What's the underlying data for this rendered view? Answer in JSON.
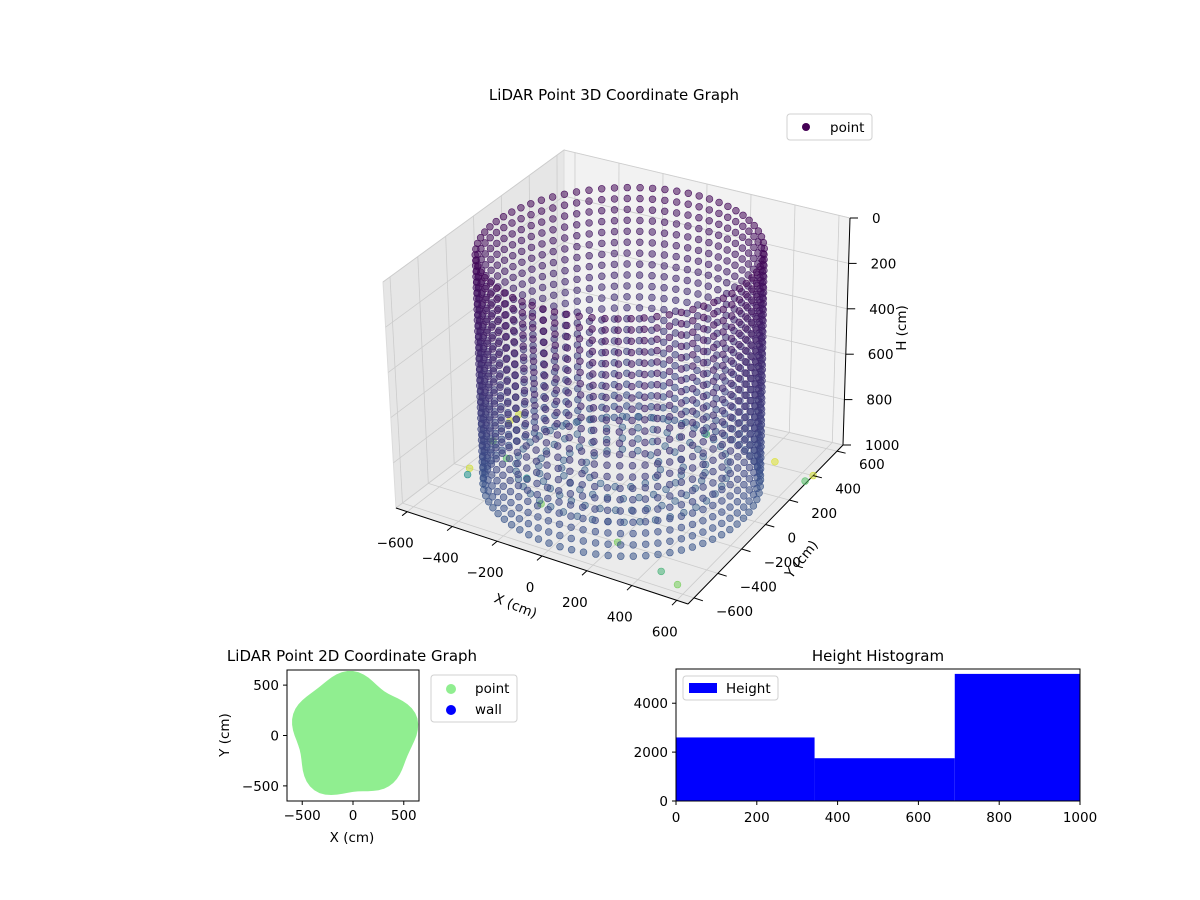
{
  "chart_data": [
    {
      "id": "lidar-3d",
      "type": "scatter",
      "projection": "3d",
      "title": "LiDAR Point 3D Coordinate Graph",
      "xlabel": "X (cm)",
      "ylabel": "Y (cm)",
      "zlabel": "H (cm)",
      "xlim": [
        -650,
        650
      ],
      "ylim": [
        -650,
        650
      ],
      "zlim": [
        0,
        1000
      ],
      "z_inverted": true,
      "xticks": [
        "−600",
        "−400",
        "−200",
        "0",
        "200",
        "400",
        "600"
      ],
      "yticks": [
        "−600",
        "−400",
        "−200",
        "0",
        "200",
        "400",
        "600"
      ],
      "zticks": [
        "0",
        "200",
        "400",
        "600",
        "800",
        "1000"
      ],
      "colormap": "viridis",
      "colormap_colors": [
        "#440154",
        "#3b528b",
        "#21918c",
        "#5ec962",
        "#fde725"
      ],
      "legend": {
        "entries": [
          "point"
        ],
        "placement": "upper-right"
      },
      "grid": true,
      "series": [
        {
          "name": "point",
          "description_shape": "cylindrical wall",
          "wall_radius": 550,
          "height_range": [
            0,
            1000
          ],
          "stray_points": [
            {
              "x": -620,
              "y": 50,
              "h": 1000
            },
            {
              "x": -600,
              "y": 150,
              "h": 950
            },
            {
              "x": -650,
              "y": 300,
              "h": 1000
            },
            {
              "x": -500,
              "y": -50,
              "h": 1000
            },
            {
              "x": -350,
              "y": -150,
              "h": 1000
            },
            {
              "x": -200,
              "y": -300,
              "h": 1000
            },
            {
              "x": 650,
              "y": 400,
              "h": 1000
            },
            {
              "x": 640,
              "y": 350,
              "h": 1000
            },
            {
              "x": 550,
              "y": -550,
              "h": 1000
            },
            {
              "x": 500,
              "y": 350,
              "h": 950
            },
            {
              "x": 450,
              "y": -500,
              "h": 1000
            },
            {
              "x": -580,
              "y": -200,
              "h": 1000
            },
            {
              "x": -560,
              "y": -250,
              "h": 1000
            },
            {
              "x": 100,
              "y": 500,
              "h": 1000
            },
            {
              "x": 200,
              "y": -400,
              "h": 1000
            }
          ]
        }
      ]
    },
    {
      "id": "lidar-2d",
      "type": "scatter",
      "title": "LiDAR Point 2D Coordinate Graph",
      "xlabel": "X (cm)",
      "ylabel": "Y (cm)",
      "xlim": [
        -650,
        650
      ],
      "ylim": [
        -650,
        650
      ],
      "xticks": [
        "−500",
        "0",
        "500"
      ],
      "yticks": [
        "−500",
        "0",
        "500"
      ],
      "legend": {
        "entries": [
          "point",
          "wall"
        ],
        "placement": "outside-right"
      },
      "series": [
        {
          "name": "point",
          "color": "#90ee90",
          "shape": "filled disc",
          "radius": 600
        },
        {
          "name": "wall",
          "color": "#0000ff",
          "points": []
        }
      ]
    },
    {
      "id": "height-hist",
      "type": "bar",
      "subtype": "histogram",
      "title": "Height Histogram",
      "xlim": [
        0,
        1000
      ],
      "ylim": [
        0,
        5400
      ],
      "xticks": [
        0,
        200,
        400,
        600,
        800,
        1000
      ],
      "yticks": [
        0,
        2000,
        4000
      ],
      "legend": {
        "entries": [
          "Height"
        ],
        "placement": "upper-left"
      },
      "series": [
        {
          "name": "Height",
          "color": "#0000ff",
          "bins": [
            {
              "x0": 0,
              "x1": 343,
              "count": 2600
            },
            {
              "x0": 343,
              "x1": 690,
              "count": 1750
            },
            {
              "x0": 690,
              "x1": 1000,
              "count": 5200
            }
          ]
        }
      ]
    }
  ]
}
